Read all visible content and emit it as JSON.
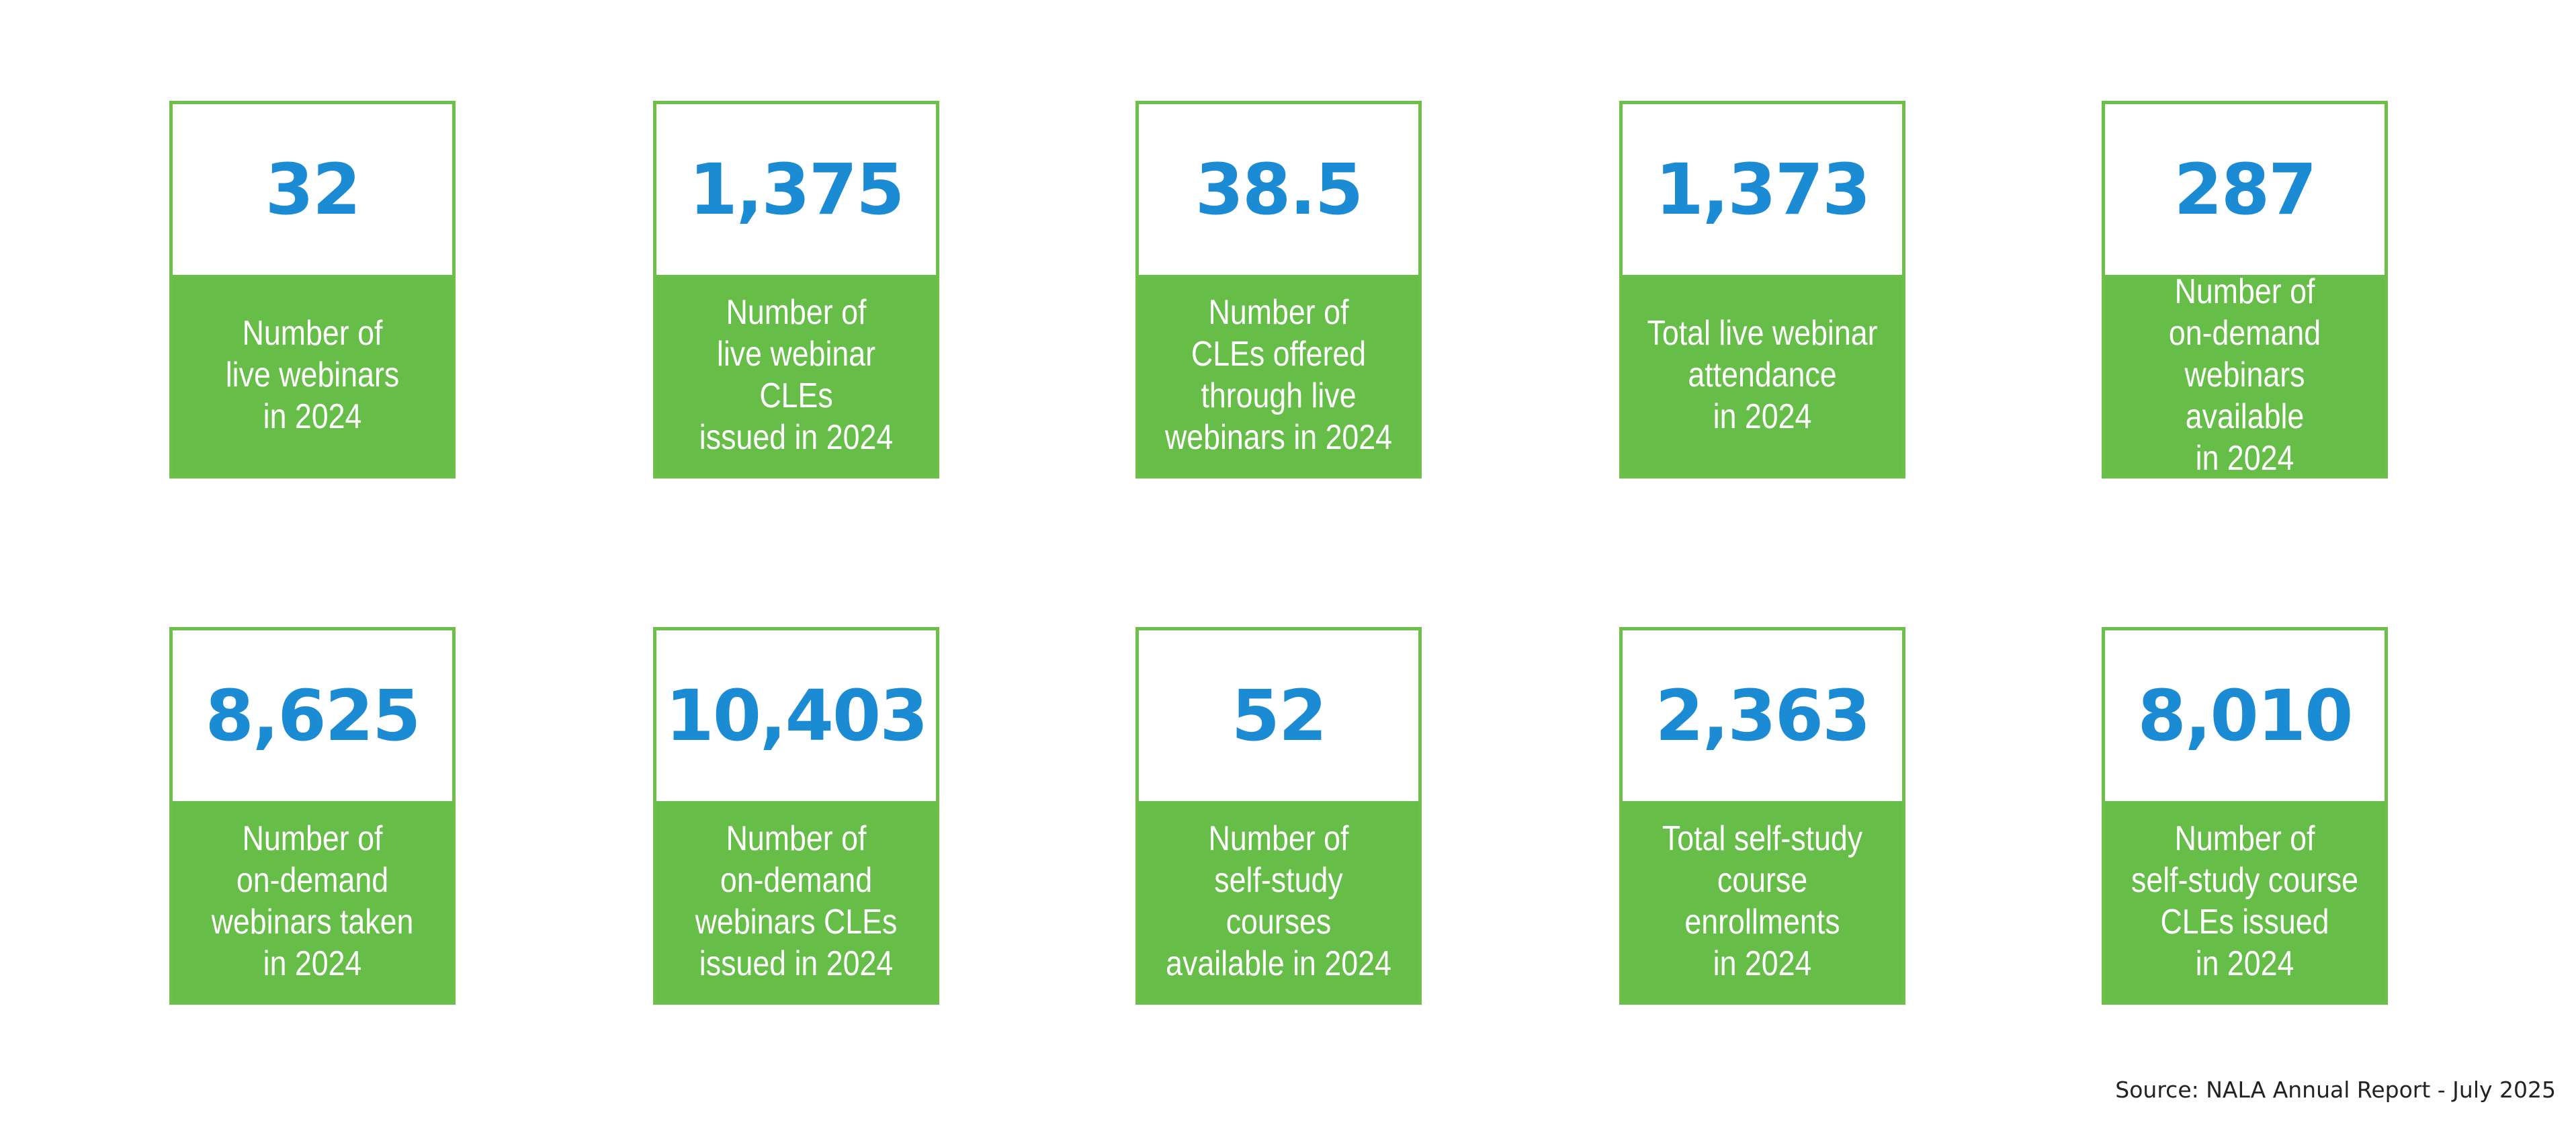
{
  "stats": [
    {
      "value": "32",
      "label": "Number of\nlive webinars\nin 2024"
    },
    {
      "value": "1,375",
      "label": "Number of\nlive webinar CLEs\nissued in 2024"
    },
    {
      "value": "38.5",
      "label": "Number of\nCLEs offered\nthrough live\nwebinars in 2024"
    },
    {
      "value": "1,373",
      "label": "Total live webinar\nattendance\nin 2024"
    },
    {
      "value": "287",
      "label": "Number of\non-demand\nwebinars available\nin 2024"
    },
    {
      "value": "8,625",
      "label": "Number of\non-demand\nwebinars taken\nin 2024"
    },
    {
      "value": "10,403",
      "label": "Number of\non-demand\nwebinars CLEs\nissued in 2024"
    },
    {
      "value": "52",
      "label": "Number of\nself-study courses\navailable in 2024"
    },
    {
      "value": "2,363",
      "label": "Total self-study\ncourse enrollments\nin 2024"
    },
    {
      "value": "8,010",
      "label": "Number of\nself-study course\nCLEs issued\nin 2024"
    }
  ],
  "source": "Source: NALA Annual Report - July 2025",
  "colors": {
    "number_blue": "#1b8bd4",
    "label_green": "#66bd47",
    "border_green": "#6cc04a"
  }
}
